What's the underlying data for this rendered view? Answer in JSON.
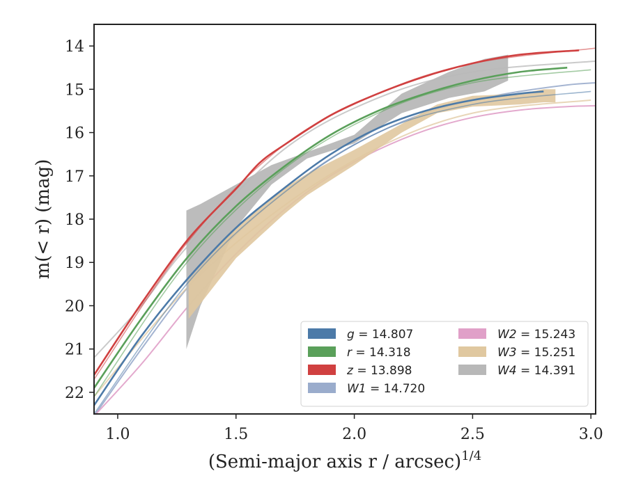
{
  "chart_data": {
    "type": "line",
    "xlabel": "(Semi-major axis r / arcsec)",
    "xlabel_sup": "1/4",
    "ylabel": "m(< r) (mag)",
    "xlim": [
      0.9,
      3.02
    ],
    "ylim": [
      22.5,
      13.5
    ],
    "y_inverted": true,
    "x_ticks": [
      1.0,
      1.5,
      2.0,
      2.5,
      3.0
    ],
    "x_tick_labels": [
      "1.0",
      "1.5",
      "2.0",
      "2.5",
      "3.0"
    ],
    "y_ticks": [
      14,
      15,
      16,
      17,
      18,
      19,
      20,
      21,
      22
    ],
    "y_tick_labels": [
      "14",
      "15",
      "16",
      "17",
      "18",
      "19",
      "20",
      "21",
      "22"
    ],
    "legend_placement": "lower-right",
    "series": [
      {
        "key": "g",
        "name": "g = 14.807",
        "legend_var": "g",
        "legend_val": "= 14.807",
        "color": "#4c7aa8",
        "x": [
          0.9,
          1.1,
          1.3,
          1.5,
          1.7,
          1.9,
          2.1,
          2.3,
          2.5,
          2.7,
          2.8
        ],
        "y": [
          22.3,
          20.7,
          19.35,
          18.2,
          17.3,
          16.5,
          15.9,
          15.5,
          15.25,
          15.1,
          15.05
        ],
        "fit": {
          "x": [
            0.9,
            1.3,
            1.7,
            2.1,
            2.5,
            3.0
          ],
          "y": [
            22.5,
            19.45,
            17.4,
            16.0,
            15.35,
            15.05
          ]
        }
      },
      {
        "key": "r",
        "name": "r = 14.318",
        "legend_var": "r",
        "legend_val": "= 14.318",
        "color": "#5aa05a",
        "x": [
          0.9,
          1.1,
          1.3,
          1.5,
          1.7,
          1.9,
          2.1,
          2.3,
          2.5,
          2.7,
          2.9
        ],
        "y": [
          21.9,
          20.3,
          18.85,
          17.7,
          16.8,
          16.05,
          15.5,
          15.1,
          14.8,
          14.6,
          14.5
        ],
        "fit": {
          "x": [
            0.9,
            1.3,
            1.7,
            2.1,
            2.5,
            3.0
          ],
          "y": [
            22.1,
            18.95,
            16.85,
            15.55,
            14.85,
            14.55
          ]
        }
      },
      {
        "key": "z",
        "name": "z = 13.898",
        "legend_var": "z",
        "legend_val": "= 13.898",
        "color": "#d04040",
        "x": [
          0.9,
          1.1,
          1.3,
          1.5,
          1.6,
          1.7,
          1.9,
          2.1,
          2.3,
          2.5,
          2.7,
          2.95
        ],
        "y": [
          21.6,
          19.95,
          18.45,
          17.3,
          16.7,
          16.3,
          15.6,
          15.1,
          14.7,
          14.4,
          14.2,
          14.1
        ],
        "fit": {
          "x": [
            0.9,
            1.3,
            1.7,
            2.1,
            2.5,
            3.02
          ],
          "y": [
            21.7,
            18.5,
            16.3,
            15.1,
            14.4,
            14.05
          ]
        }
      },
      {
        "key": "W1",
        "name": "W1 = 14.720",
        "legend_var": "W1",
        "legend_val": "= 14.720",
        "color": "#9aaccc",
        "x": [
          0.9,
          1.1,
          1.3,
          1.5,
          1.7,
          1.9,
          2.1,
          2.3,
          2.5,
          2.7,
          2.9,
          3.02
        ],
        "y": [
          22.55,
          21.0,
          19.55,
          18.35,
          17.4,
          16.6,
          16.0,
          15.55,
          15.25,
          15.05,
          14.9,
          14.85
        ]
      },
      {
        "key": "W2",
        "name": "W2 = 15.243",
        "legend_var": "W2",
        "legend_val": "= 15.243",
        "color": "#e0a0c8",
        "x": [
          0.9,
          1.1,
          1.3,
          1.5,
          1.7,
          1.9,
          2.1,
          2.3,
          2.5,
          2.7,
          2.9,
          3.02
        ],
        "y": [
          22.55,
          21.35,
          20.0,
          18.8,
          17.8,
          17.0,
          16.4,
          15.95,
          15.65,
          15.48,
          15.4,
          15.38
        ]
      },
      {
        "key": "W3",
        "name": "W3 = 15.251",
        "legend_var": "W3",
        "legend_val": "= 15.251",
        "color": "#e0c8a0",
        "band_x": [
          1.3,
          1.5,
          1.7,
          1.8,
          2.0,
          2.2,
          2.35,
          2.5,
          2.7,
          2.8,
          2.85
        ],
        "band_lo": [
          20.3,
          18.9,
          17.9,
          17.45,
          16.75,
          16.0,
          15.55,
          15.4,
          15.35,
          15.3,
          15.3
        ],
        "band_hi": [
          19.4,
          18.2,
          17.3,
          16.95,
          16.4,
          15.8,
          15.35,
          15.15,
          15.1,
          15.0,
          15.0
        ],
        "line": {
          "x": [
            0.9,
            1.3,
            1.7,
            2.1,
            2.5,
            3.0
          ],
          "y": [
            22.1,
            19.55,
            17.7,
            16.35,
            15.55,
            15.25
          ]
        }
      },
      {
        "key": "W4",
        "name": "W4 = 14.391",
        "legend_var": "W4",
        "legend_val": "= 14.391",
        "color": "#b8b8b8",
        "band_x": [
          1.29,
          1.35,
          1.5,
          1.65,
          1.8,
          2.0,
          2.2,
          2.4,
          2.55,
          2.65
        ],
        "band_lo": [
          21.0,
          20.0,
          18.2,
          17.2,
          16.6,
          16.25,
          15.55,
          15.2,
          15.05,
          14.8
        ],
        "band_hi": [
          17.8,
          17.65,
          17.2,
          16.75,
          16.45,
          16.05,
          15.1,
          14.6,
          14.3,
          14.2
        ],
        "line": {
          "x": [
            0.9,
            1.1,
            1.3,
            1.7,
            2.1,
            2.5,
            3.02
          ],
          "y": [
            21.2,
            20.0,
            18.6,
            16.4,
            15.2,
            14.6,
            14.35
          ]
        }
      }
    ]
  }
}
